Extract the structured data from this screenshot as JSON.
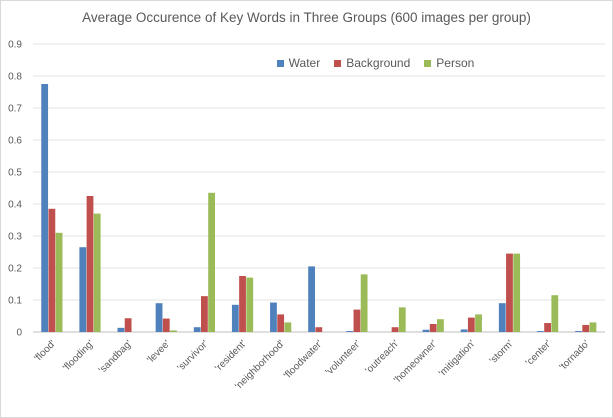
{
  "chart_data": {
    "type": "bar",
    "title": "Average Occurence of Key Words in Three Groups (600 images per group)",
    "xlabel": "",
    "ylabel": "",
    "ylim": [
      0,
      0.9
    ],
    "yticks": [
      "0",
      "0.1",
      "0.2",
      "0.3",
      "0.4",
      "0.5",
      "0.6",
      "0.7",
      "0.8",
      "0.9"
    ],
    "grid": true,
    "legend_position": "top",
    "categories": [
      "'flood'",
      "'flooding'",
      "'sandbag'",
      "'levee'",
      "'survivor'",
      "'resident'",
      "'neighborhood'",
      "'floodwater'",
      "'volunteer'",
      "'outreach'",
      "'homeowner'",
      "'mitigation'",
      "'storm'",
      "'center'",
      "'tornado'"
    ],
    "series": [
      {
        "name": "Water",
        "color": "#4f81bd",
        "values": [
          0.775,
          0.265,
          0.013,
          0.09,
          0.015,
          0.085,
          0.092,
          0.205,
          0.003,
          0.0,
          0.007,
          0.008,
          0.09,
          0.003,
          0.003
        ]
      },
      {
        "name": "Background",
        "color": "#c0504d",
        "values": [
          0.385,
          0.425,
          0.043,
          0.042,
          0.112,
          0.175,
          0.055,
          0.015,
          0.07,
          0.015,
          0.025,
          0.045,
          0.245,
          0.028,
          0.022
        ]
      },
      {
        "name": "Person",
        "color": "#9bbb59",
        "values": [
          0.31,
          0.37,
          0.0,
          0.005,
          0.435,
          0.17,
          0.03,
          0.0,
          0.18,
          0.077,
          0.04,
          0.055,
          0.245,
          0.115,
          0.03
        ]
      }
    ]
  }
}
